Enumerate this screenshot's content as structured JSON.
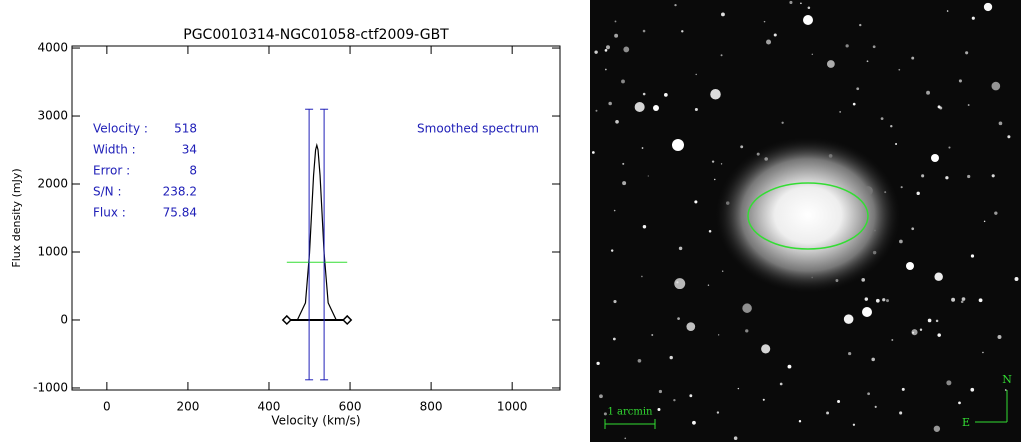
{
  "chart_data": {
    "type": "line",
    "title": "PGC0010314-NGC01058-ctf2009-GBT",
    "x_label": "Velocity (km/s)",
    "y_label": "Flux density (mJy)",
    "xlim": [
      -86,
      1118
    ],
    "ylim": [
      -1030,
      4030
    ],
    "xticks": [
      0,
      200,
      400,
      600,
      800,
      1000
    ],
    "yticks": [
      -1000,
      0,
      1000,
      2000,
      3000,
      4000
    ],
    "series": [
      {
        "color": "#000000",
        "x": [
          445,
          470,
          490,
          500,
          505,
          510,
          515,
          518,
          521,
          526,
          531,
          536,
          546,
          566,
          595
        ],
        "values": [
          0,
          0,
          252,
          984,
          1560,
          2126,
          2502,
          2570,
          2502,
          2126,
          1560,
          984,
          252,
          0,
          0
        ]
      }
    ],
    "baseline": {
      "x": [
        444,
        593
      ],
      "y": 0,
      "color": "#000000"
    },
    "level": {
      "x": [
        444,
        593
      ],
      "y": 850,
      "color": "#33dd33"
    },
    "limits": {
      "x": [
        499,
        536
      ],
      "y": [
        -880,
        3100
      ],
      "color": "#2020b8"
    },
    "stats": [
      {
        "label": "Velocity :",
        "value": 518
      },
      {
        "label": "Width :",
        "value": 34
      },
      {
        "label": "Error :",
        "value": 8
      },
      {
        "label": "S/N :",
        "value": 238.2
      },
      {
        "label": "Flux :",
        "value": 75.84
      }
    ],
    "note": "Smoothed spectrum"
  },
  "image": {
    "scale_label": "1 arcmin",
    "north": "N",
    "east": "E"
  }
}
